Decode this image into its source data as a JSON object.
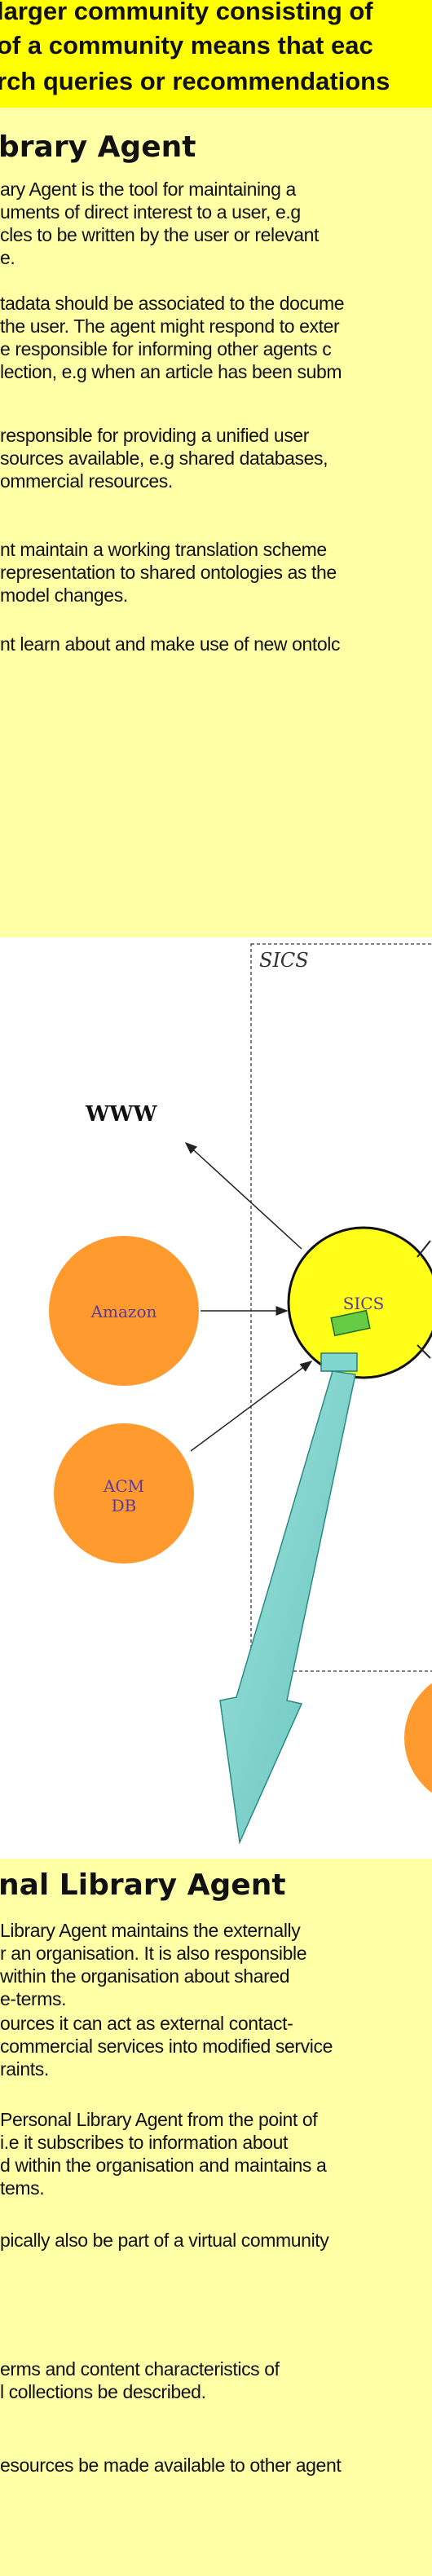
{
  "banner": {
    "lines": [
      "larger community consisting of",
      "of a community means that eac",
      "rch queries or recommendations"
    ]
  },
  "section1": {
    "title": "brary Agent",
    "paragraphs": [
      [
        "ary Agent is the tool for maintaining a",
        "uments of direct interest to a user, e.g",
        "cles to be  written by the user or relevant",
        "e."
      ],
      [
        "tadata should be associated to the docume",
        "the user. The agent might respond to exter",
        "e responsible  for informing other agents c",
        "lection, e.g when an article has been subm"
      ],
      [
        "responsible for providing a unified user",
        "sources available, e.g shared databases,",
        "ommercial resources."
      ],
      [
        "nt maintain a working translation scheme",
        "representation to shared ontologies as the",
        " model changes."
      ],
      [
        "nt learn about and make use of new ontolc"
      ]
    ]
  },
  "diagram": {
    "region_label": "SICS",
    "www_label": "WWW",
    "nodes": {
      "amazon": "Amazon",
      "acm_line1": "ACM",
      "acm_line2": "DB",
      "sics": "SICS"
    },
    "colors": {
      "orange_node": "#ff9a2e",
      "sics_node": "#ffff1a",
      "arrow_fill": "#7fd6cf",
      "small_box": "#66cc44"
    }
  },
  "section2": {
    "title": "nal Library Agent",
    "paragraphs": [
      [
        "Library Agent maintains the externally",
        "r an organisation. It is also responsible",
        " within the organisation about shared",
        "e-terms."
      ],
      [
        "ources it can act as external contact-",
        "commercial services into modified service",
        "raints."
      ],
      [
        "Personal Library Agent  from  the point of",
        " i.e it subscribes to information about",
        "d within the organisation and maintains a",
        "tems."
      ],
      [
        "pically also be part of a virtual community"
      ],
      [
        "erms and content characteristics of",
        "l collections be described."
      ],
      [
        "esources be made available to other agent"
      ]
    ]
  }
}
